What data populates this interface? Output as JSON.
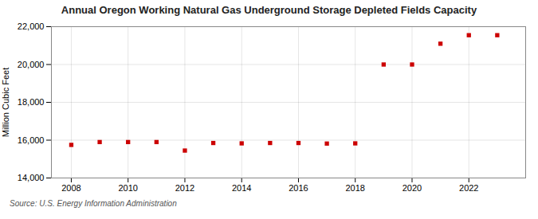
{
  "chart_data": {
    "type": "scatter",
    "title": "Annual Oregon Working Natural Gas Underground Storage Depleted Fields Capacity",
    "ylabel": "Million Cubic Feet",
    "source": "Source: U.S. Energy Information Administration",
    "x": [
      2008,
      2009,
      2010,
      2011,
      2012,
      2013,
      2014,
      2015,
      2016,
      2017,
      2018,
      2019,
      2020,
      2021,
      2022,
      2023
    ],
    "values": [
      15750,
      15900,
      15900,
      15900,
      15450,
      15850,
      15830,
      15850,
      15850,
      15820,
      15830,
      20000,
      20000,
      21100,
      21550,
      21550
    ],
    "color": "#cc0000",
    "marker": "square",
    "xlim": [
      2007.3,
      2024.0
    ],
    "xticks": [
      2008,
      2010,
      2012,
      2014,
      2016,
      2018,
      2020,
      2022
    ],
    "ylim": [
      14000,
      22000
    ],
    "yticks": [
      {
        "value": 14000,
        "label": "14,000"
      },
      {
        "value": 16000,
        "label": "16,000"
      },
      {
        "value": 18000,
        "label": "18,000"
      },
      {
        "value": 20000,
        "label": "20,000"
      },
      {
        "value": 22000,
        "label": "22,000"
      }
    ],
    "grid": true
  }
}
